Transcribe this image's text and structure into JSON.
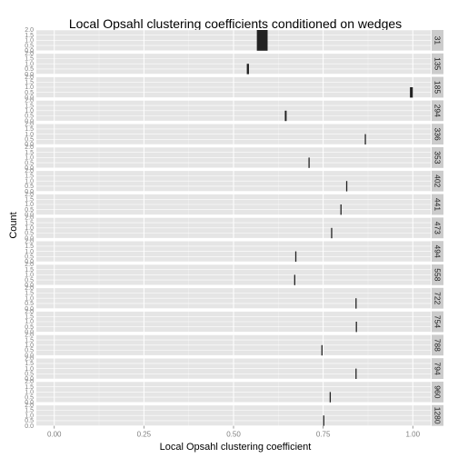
{
  "chart_data": {
    "type": "bar",
    "title": "Local Opsahl clustering coefficients conditioned on wedges",
    "xlabel": "Local Opsahl clustering coefficient",
    "ylabel": "Count",
    "xlim": [
      -0.05,
      1.05
    ],
    "x_ticks": [
      "0.00",
      "0.25",
      "0.50",
      "0.75",
      "1.00"
    ],
    "x_tick_values": [
      0,
      0.25,
      0.5,
      0.75,
      1.0
    ],
    "ylim": [
      0,
      2
    ],
    "y_ticks": [
      "0.0",
      "0.5",
      "1.0",
      "1.5",
      "2.0"
    ],
    "y_tick_values": [
      0,
      0.5,
      1.0,
      1.5,
      2.0
    ],
    "grid": true,
    "facet_by": "wedges",
    "panels": [
      {
        "strip": "31",
        "bins": [
          {
            "x0": 0.565,
            "x1": 0.595,
            "count": 2
          }
        ]
      },
      {
        "strip": "135",
        "bins": [
          {
            "x0": 0.537,
            "x1": 0.543,
            "count": 1
          }
        ]
      },
      {
        "strip": "185",
        "bins": [
          {
            "x0": 0.992,
            "x1": 1.0,
            "count": 1
          }
        ]
      },
      {
        "strip": "294",
        "bins": [
          {
            "x0": 0.643,
            "x1": 0.648,
            "count": 1
          }
        ]
      },
      {
        "strip": "336",
        "bins": [
          {
            "x0": 0.866,
            "x1": 0.869,
            "count": 1
          }
        ]
      },
      {
        "strip": "353",
        "bins": [
          {
            "x0": 0.709,
            "x1": 0.712,
            "count": 1
          }
        ]
      },
      {
        "strip": "402",
        "bins": [
          {
            "x0": 0.814,
            "x1": 0.817,
            "count": 1
          }
        ]
      },
      {
        "strip": "441",
        "bins": [
          {
            "x0": 0.798,
            "x1": 0.8,
            "count": 1
          }
        ]
      },
      {
        "strip": "473",
        "bins": [
          {
            "x0": 0.772,
            "x1": 0.774,
            "count": 1
          }
        ]
      },
      {
        "strip": "494",
        "bins": [
          {
            "x0": 0.672,
            "x1": 0.674,
            "count": 1
          }
        ]
      },
      {
        "strip": "558",
        "bins": [
          {
            "x0": 0.669,
            "x1": 0.671,
            "count": 1
          }
        ]
      },
      {
        "strip": "722",
        "bins": [
          {
            "x0": 0.84,
            "x1": 0.842,
            "count": 1
          }
        ]
      },
      {
        "strip": "754",
        "bins": [
          {
            "x0": 0.841,
            "x1": 0.843,
            "count": 1
          }
        ]
      },
      {
        "strip": "788",
        "bins": [
          {
            "x0": 0.745,
            "x1": 0.747,
            "count": 1
          }
        ]
      },
      {
        "strip": "794",
        "bins": [
          {
            "x0": 0.84,
            "x1": 0.842,
            "count": 1
          }
        ]
      },
      {
        "strip": "960",
        "bins": [
          {
            "x0": 0.768,
            "x1": 0.77,
            "count": 1
          }
        ]
      },
      {
        "strip": "1280",
        "bins": [
          {
            "x0": 0.75,
            "x1": 0.752,
            "count": 1
          }
        ]
      }
    ],
    "colors": {
      "panel_background": "#e5e5e5",
      "grid_major": "#ffffff",
      "grid_minor": "#f2f2f2",
      "strip_background": "#cccccc",
      "bar_fill": "#222222",
      "tick_text": "#7f7f7f"
    }
  }
}
